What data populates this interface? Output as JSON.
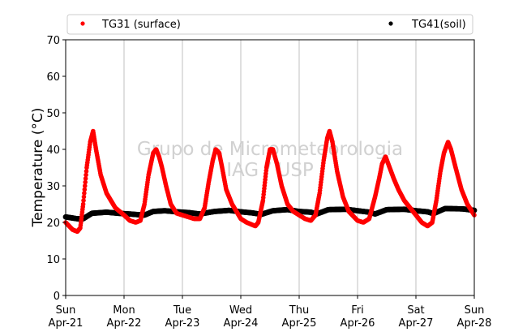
{
  "chart_data": {
    "type": "scatter",
    "ylabel": "Temperature (°C)",
    "ylim": [
      0,
      70
    ],
    "yticks": [
      0,
      10,
      20,
      30,
      40,
      50,
      60,
      70
    ],
    "xlim": [
      0,
      7
    ],
    "xticks": [
      {
        "day": "Sun",
        "date": "Apr-21",
        "x": 0
      },
      {
        "day": "Mon",
        "date": "Apr-22",
        "x": 1
      },
      {
        "day": "Tue",
        "date": "Apr-23",
        "x": 2
      },
      {
        "day": "Wed",
        "date": "Apr-24",
        "x": 3
      },
      {
        "day": "Thu",
        "date": "Apr-25",
        "x": 4
      },
      {
        "day": "Fri",
        "date": "Apr-26",
        "x": 5
      },
      {
        "day": "Sat",
        "date": "Apr-27",
        "x": 6
      },
      {
        "day": "Sun",
        "date": "Apr-28",
        "x": 7
      }
    ],
    "grid": "vertical",
    "legend_placement": "top",
    "watermark": [
      "Grupo de Micrometeorologia",
      "IAG / USP"
    ],
    "series": [
      {
        "name": "TG31 (surface)",
        "color": "#ff0000",
        "points": [
          [
            0.0,
            20.0
          ],
          [
            0.06,
            19.0
          ],
          [
            0.12,
            18.0
          ],
          [
            0.2,
            17.5
          ],
          [
            0.25,
            18.5
          ],
          [
            0.3,
            25
          ],
          [
            0.36,
            35
          ],
          [
            0.42,
            42
          ],
          [
            0.47,
            45
          ],
          [
            0.52,
            40
          ],
          [
            0.6,
            33
          ],
          [
            0.7,
            28
          ],
          [
            0.85,
            24
          ],
          [
            1.0,
            22
          ],
          [
            1.1,
            20.5
          ],
          [
            1.2,
            20.0
          ],
          [
            1.28,
            20.5
          ],
          [
            1.35,
            25
          ],
          [
            1.42,
            33
          ],
          [
            1.5,
            39
          ],
          [
            1.55,
            40
          ],
          [
            1.6,
            38
          ],
          [
            1.65,
            35
          ],
          [
            1.72,
            30
          ],
          [
            1.8,
            25
          ],
          [
            1.9,
            22.5
          ],
          [
            2.0,
            22
          ],
          [
            2.1,
            21.5
          ],
          [
            2.2,
            21
          ],
          [
            2.3,
            21
          ],
          [
            2.38,
            24
          ],
          [
            2.45,
            31
          ],
          [
            2.52,
            37
          ],
          [
            2.57,
            40
          ],
          [
            2.63,
            39
          ],
          [
            2.68,
            35
          ],
          [
            2.75,
            29
          ],
          [
            2.85,
            25
          ],
          [
            3.0,
            21
          ],
          [
            3.1,
            20
          ],
          [
            3.25,
            19
          ],
          [
            3.3,
            20
          ],
          [
            3.38,
            26
          ],
          [
            3.44,
            35
          ],
          [
            3.5,
            40
          ],
          [
            3.55,
            40
          ],
          [
            3.62,
            36
          ],
          [
            3.7,
            30
          ],
          [
            3.8,
            25
          ],
          [
            3.9,
            23
          ],
          [
            4.0,
            22
          ],
          [
            4.1,
            21
          ],
          [
            4.2,
            20.5
          ],
          [
            4.28,
            22
          ],
          [
            4.35,
            28
          ],
          [
            4.42,
            37
          ],
          [
            4.48,
            43
          ],
          [
            4.52,
            45
          ],
          [
            4.57,
            42
          ],
          [
            4.65,
            34
          ],
          [
            4.75,
            27
          ],
          [
            4.85,
            23
          ],
          [
            5.0,
            20.5
          ],
          [
            5.1,
            20
          ],
          [
            5.2,
            21
          ],
          [
            5.3,
            27
          ],
          [
            5.37,
            32
          ],
          [
            5.42,
            36
          ],
          [
            5.48,
            38
          ],
          [
            5.55,
            35
          ],
          [
            5.62,
            32
          ],
          [
            5.7,
            29
          ],
          [
            5.8,
            26
          ],
          [
            5.9,
            24
          ],
          [
            6.0,
            22
          ],
          [
            6.1,
            20
          ],
          [
            6.2,
            19
          ],
          [
            6.28,
            20
          ],
          [
            6.35,
            26
          ],
          [
            6.42,
            34
          ],
          [
            6.48,
            39
          ],
          [
            6.55,
            42
          ],
          [
            6.6,
            40
          ],
          [
            6.68,
            35
          ],
          [
            6.78,
            29
          ],
          [
            6.88,
            25
          ],
          [
            7.0,
            22
          ]
        ]
      },
      {
        "name": "TG41(soil)",
        "color": "#000000",
        "points": [
          [
            0.0,
            21.5
          ],
          [
            0.2,
            21.0
          ],
          [
            0.3,
            21.0
          ],
          [
            0.45,
            22.5
          ],
          [
            0.7,
            22.8
          ],
          [
            0.9,
            22.5
          ],
          [
            1.1,
            22.3
          ],
          [
            1.35,
            22.0
          ],
          [
            1.5,
            23.0
          ],
          [
            1.7,
            23.2
          ],
          [
            1.9,
            22.9
          ],
          [
            2.1,
            22.7
          ],
          [
            2.3,
            22.3
          ],
          [
            2.55,
            23.0
          ],
          [
            2.8,
            23.3
          ],
          [
            3.0,
            22.9
          ],
          [
            3.2,
            22.6
          ],
          [
            3.35,
            22.2
          ],
          [
            3.55,
            23.2
          ],
          [
            3.8,
            23.5
          ],
          [
            4.0,
            23.0
          ],
          [
            4.2,
            22.8
          ],
          [
            4.3,
            22.3
          ],
          [
            4.5,
            23.5
          ],
          [
            4.8,
            23.6
          ],
          [
            5.0,
            23.2
          ],
          [
            5.2,
            22.8
          ],
          [
            5.3,
            22.3
          ],
          [
            5.5,
            23.5
          ],
          [
            5.8,
            23.6
          ],
          [
            6.0,
            23.2
          ],
          [
            6.2,
            22.9
          ],
          [
            6.3,
            22.4
          ],
          [
            6.5,
            23.8
          ],
          [
            6.8,
            23.7
          ],
          [
            7.0,
            23.3
          ]
        ]
      }
    ]
  }
}
